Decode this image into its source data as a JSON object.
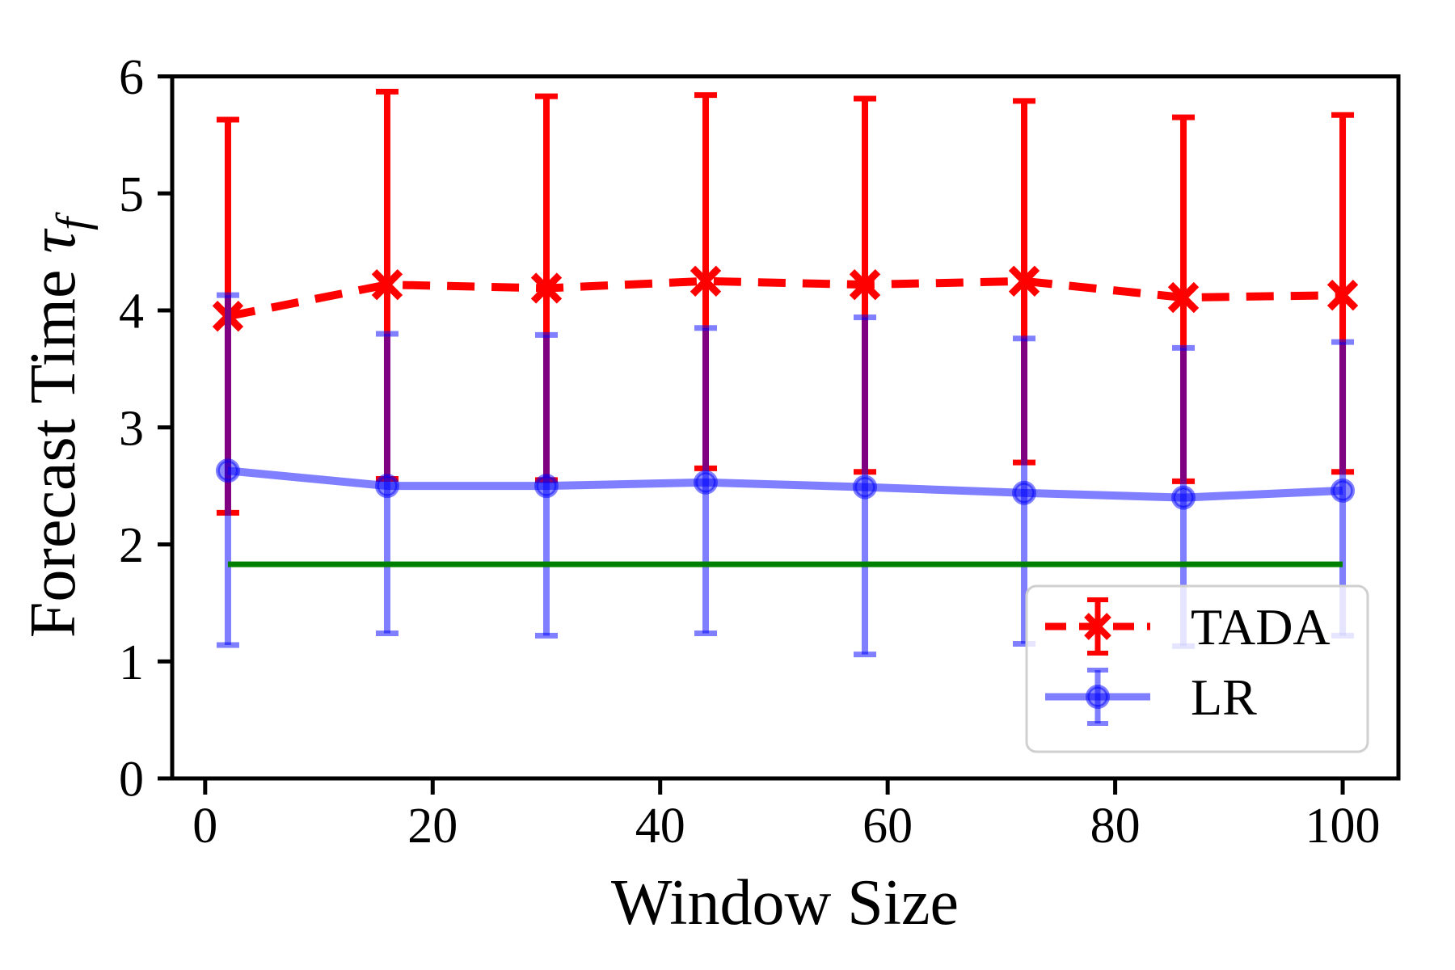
{
  "chart_data": {
    "type": "line",
    "title": "",
    "xlabel": "Window Size",
    "ylabel": "Forecast Time τf",
    "ylabel_text": "Forecast Time ",
    "ylabel_symbol": "τ",
    "ylabel_subscript": "f",
    "xlim": [
      -2.9,
      104.9
    ],
    "ylim": [
      0,
      6
    ],
    "xticks": [
      0,
      20,
      40,
      60,
      80,
      100
    ],
    "yticks": [
      0,
      1,
      2,
      3,
      4,
      5,
      6
    ],
    "grid": false,
    "legend_position": "lower right",
    "x": [
      2,
      16,
      30,
      44,
      58,
      72,
      86,
      100
    ],
    "series": [
      {
        "name": "TADA",
        "color": "#ff0000",
        "opacity": 1.0,
        "linestyle": "dashed",
        "marker": "x",
        "y": [
          3.95,
          4.22,
          4.19,
          4.25,
          4.22,
          4.25,
          4.11,
          4.13
        ],
        "y_err_upper_tip": [
          5.63,
          5.87,
          5.83,
          5.84,
          5.81,
          5.79,
          5.65,
          5.67
        ],
        "y_err_lower_tip": [
          2.27,
          2.56,
          2.55,
          2.65,
          2.62,
          2.7,
          2.54,
          2.62
        ]
      },
      {
        "name": "LR",
        "color": "#0000ff",
        "opacity": 0.5,
        "linestyle": "solid",
        "marker": "o",
        "y": [
          2.63,
          2.5,
          2.5,
          2.53,
          2.49,
          2.44,
          2.4,
          2.46
        ],
        "y_err_upper_tip": [
          4.13,
          3.8,
          3.79,
          3.85,
          3.94,
          3.76,
          3.68,
          3.73
        ],
        "y_err_lower_tip": [
          1.14,
          1.24,
          1.22,
          1.24,
          1.06,
          1.15,
          1.13,
          1.22
        ]
      }
    ],
    "baseline": {
      "y": 1.83,
      "color": "#008000",
      "x_start": 2,
      "x_end": 100
    }
  }
}
